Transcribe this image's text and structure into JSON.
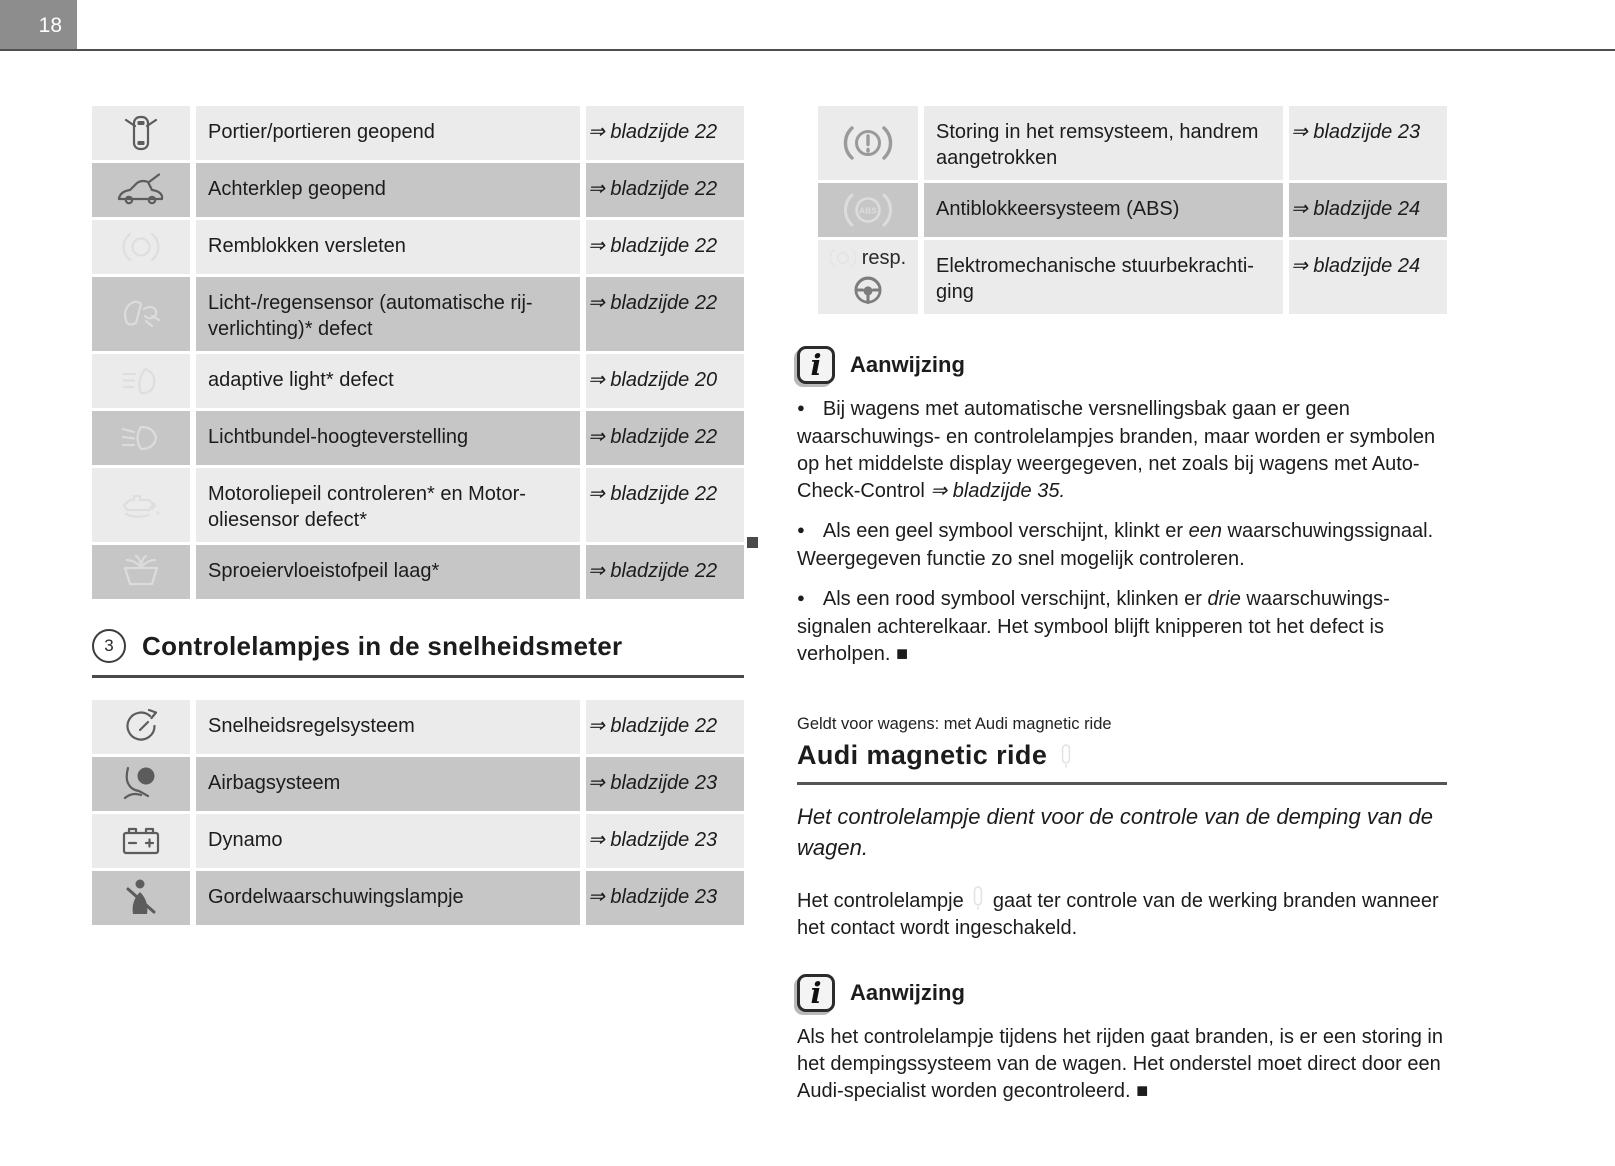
{
  "page": {
    "number": "18"
  },
  "arrow": "⇒",
  "left_column": {
    "warning_table": {
      "rows": [
        {
          "icon": "doors-open-icon",
          "icon_tone": "dark",
          "tone": "light",
          "label": "Portier/portieren geopend",
          "ref": "bladzijde 22"
        },
        {
          "icon": "tailgate-open-icon",
          "icon_tone": "dark",
          "tone": "dark",
          "label": "Achterklep geopend",
          "ref": "bladzijde 22"
        },
        {
          "icon": "brake-pads-icon",
          "icon_tone": "faint",
          "tone": "light",
          "label": "Remblokken versleten",
          "ref": "bladzijde 22"
        },
        {
          "icon": "light-rain-sensor-icon",
          "icon_tone": "faint",
          "tone": "dark",
          "label": "Licht-/regensensor (automatische rij­verlichting)* defect",
          "ref": "bladzijde 22"
        },
        {
          "icon": "adaptive-light-icon",
          "icon_tone": "faint",
          "tone": "light",
          "label": "adaptive light* defect",
          "ref": "bladzijde 20"
        },
        {
          "icon": "headlight-range-icon",
          "icon_tone": "faint",
          "tone": "dark",
          "label": "Lichtbundel-hoogteverstelling",
          "ref": "bladzijde 22"
        },
        {
          "icon": "oil-level-icon",
          "icon_tone": "faint",
          "tone": "light",
          "label": "Motoroliepeil controleren* en Motor­oliesensor defect*",
          "ref": "bladzijde 22"
        },
        {
          "icon": "washer-fluid-icon",
          "icon_tone": "faint",
          "tone": "dark",
          "label": "Sproeiervloeistofpeil laag*",
          "ref": "bladzijde 22"
        }
      ]
    },
    "end_marker": "",
    "section_heading": {
      "number": "3",
      "title": "Controlelampjes in de snelheidsmeter"
    },
    "speedometer_table": {
      "rows": [
        {
          "icon": "cruise-control-icon",
          "icon_tone": "dark",
          "tone": "light",
          "label": "Snelheidsregelsysteem",
          "ref": "bladzijde 22"
        },
        {
          "icon": "airbag-icon",
          "icon_tone": "dark",
          "tone": "dark",
          "label": "Airbagsysteem",
          "ref": "bladzijde 23"
        },
        {
          "icon": "battery-icon",
          "icon_tone": "dark",
          "tone": "light",
          "label": "Dynamo",
          "ref": "bladzijde 23"
        },
        {
          "icon": "seatbelt-icon",
          "icon_tone": "dark",
          "tone": "dark",
          "label": "Gordelwaarschuwingslampje",
          "ref": "bladzijde 23"
        }
      ]
    }
  },
  "right_column": {
    "warning_table": {
      "rows": [
        {
          "icon": "brake-warning-icon",
          "icon_tone": "dark",
          "icon_color": "#9a9a9a",
          "tone": "light",
          "label": "Storing in het remsysteem, handrem aangetrokken",
          "ref": "bladzijde 23"
        },
        {
          "icon": "abs-icon",
          "icon_tone": "faint",
          "tone": "dark",
          "label": "Antiblokkeersysteem (ABS)",
          "ref": "bladzijde 24"
        },
        {
          "icon": "steering-icon",
          "icon_tone": "dark",
          "icon_color": "#7c7c7c",
          "tone": "light",
          "prefix": "resp.",
          "prefix_icon": "esp-lamp-icon",
          "label": "Elektromechanische stuurbekrachti­ging",
          "ref": "bladzijde 24"
        }
      ]
    },
    "note1": {
      "title": "Aanwijzing",
      "bullets": [
        [
          {
            "t": "Bij wagens met automatische versnellingsbak gaan er geen waarschuwings- en controlelampjes branden, maar worden er symbolen op het middelste display weergegeven, net zoals bij wagens met Auto-Check-Control "
          },
          {
            "t": "⇒ bladzijde 35.",
            "i": true
          }
        ],
        [
          {
            "t": "Als een geel symbool verschijnt, klinkt er "
          },
          {
            "t": "een",
            "i": true
          },
          {
            "t": " waarschuwingssig­naal. Weergegeven functie zo snel mogelijk controleren."
          }
        ],
        [
          {
            "t": "Als een rood symbool verschijnt, klinken er "
          },
          {
            "t": "drie",
            "i": true
          },
          {
            "t": " waarschuwings­signalen achterelkaar. Het symbool blijft knipperen tot het defect is verholpen. ■"
          }
        ]
      ]
    },
    "magnetic_ride": {
      "applies_note": "Geldt voor wagens: met Audi magnetic ride",
      "title": "Audi magnetic ride",
      "lead": "Het controlelampje dient voor de controle van de demping van de wagen.",
      "body": [
        {
          "t": "Het controlelampje "
        },
        {
          "icon": "magnetic-ride-lamp-icon"
        },
        {
          "t": " gaat ter controle van de werking branden wanneer het contact wordt ingeschakeld."
        }
      ]
    },
    "note2": {
      "title": "Aanwijzing",
      "body": "Als het controlelampje tijdens het rijden gaat branden, is er een storing in het dempingssysteem van de wagen. Het onderstel moet direct door een Audi-specialist worden gecontroleerd. ■"
    }
  }
}
